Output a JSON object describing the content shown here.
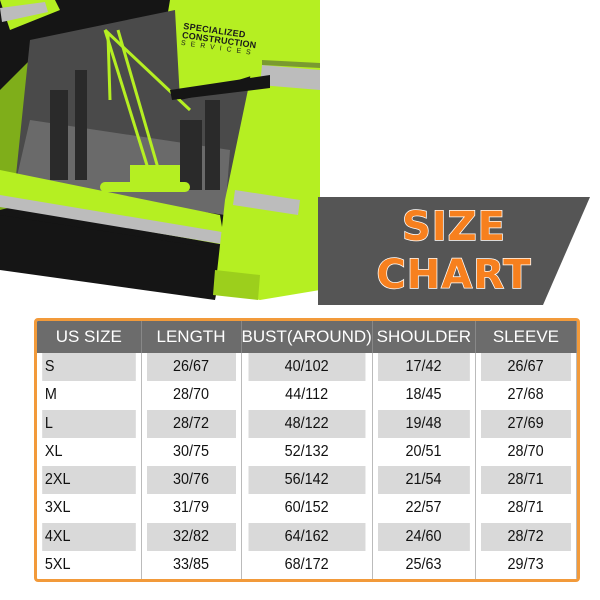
{
  "brand": {
    "line1": "SPECIALIZED",
    "line2": "CONSTRUCTION",
    "line3": "SERVICES"
  },
  "banner": {
    "line1": "SIZE",
    "line2": "CHART"
  },
  "colors": {
    "lime": "#b5ef22",
    "black": "#151515",
    "reflective": "#b9b9b9",
    "orange": "#f7801e",
    "banner_bg": "#555555",
    "table_border": "#f29a3a",
    "header_bg": "#6c6c6c"
  },
  "table": {
    "headers": [
      "US SIZE",
      "LENGTH",
      "BUST(AROUND)",
      "SHOULDER",
      "SLEEVE"
    ],
    "rows": [
      [
        "S",
        "26/67",
        "40/102",
        "17/42",
        "26/67"
      ],
      [
        "M",
        "28/70",
        "44/112",
        "18/45",
        "27/68"
      ],
      [
        "L",
        "28/72",
        "48/122",
        "19/48",
        "27/69"
      ],
      [
        "XL",
        "30/75",
        "52/132",
        "20/51",
        "28/70"
      ],
      [
        "2XL",
        "30/76",
        "56/142",
        "21/54",
        "28/71"
      ],
      [
        "3XL",
        "31/79",
        "60/152",
        "22/57",
        "28/71"
      ],
      [
        "4XL",
        "32/82",
        "64/162",
        "24/60",
        "28/72"
      ],
      [
        "5XL",
        "33/85",
        "68/172",
        "25/63",
        "29/73"
      ]
    ]
  }
}
